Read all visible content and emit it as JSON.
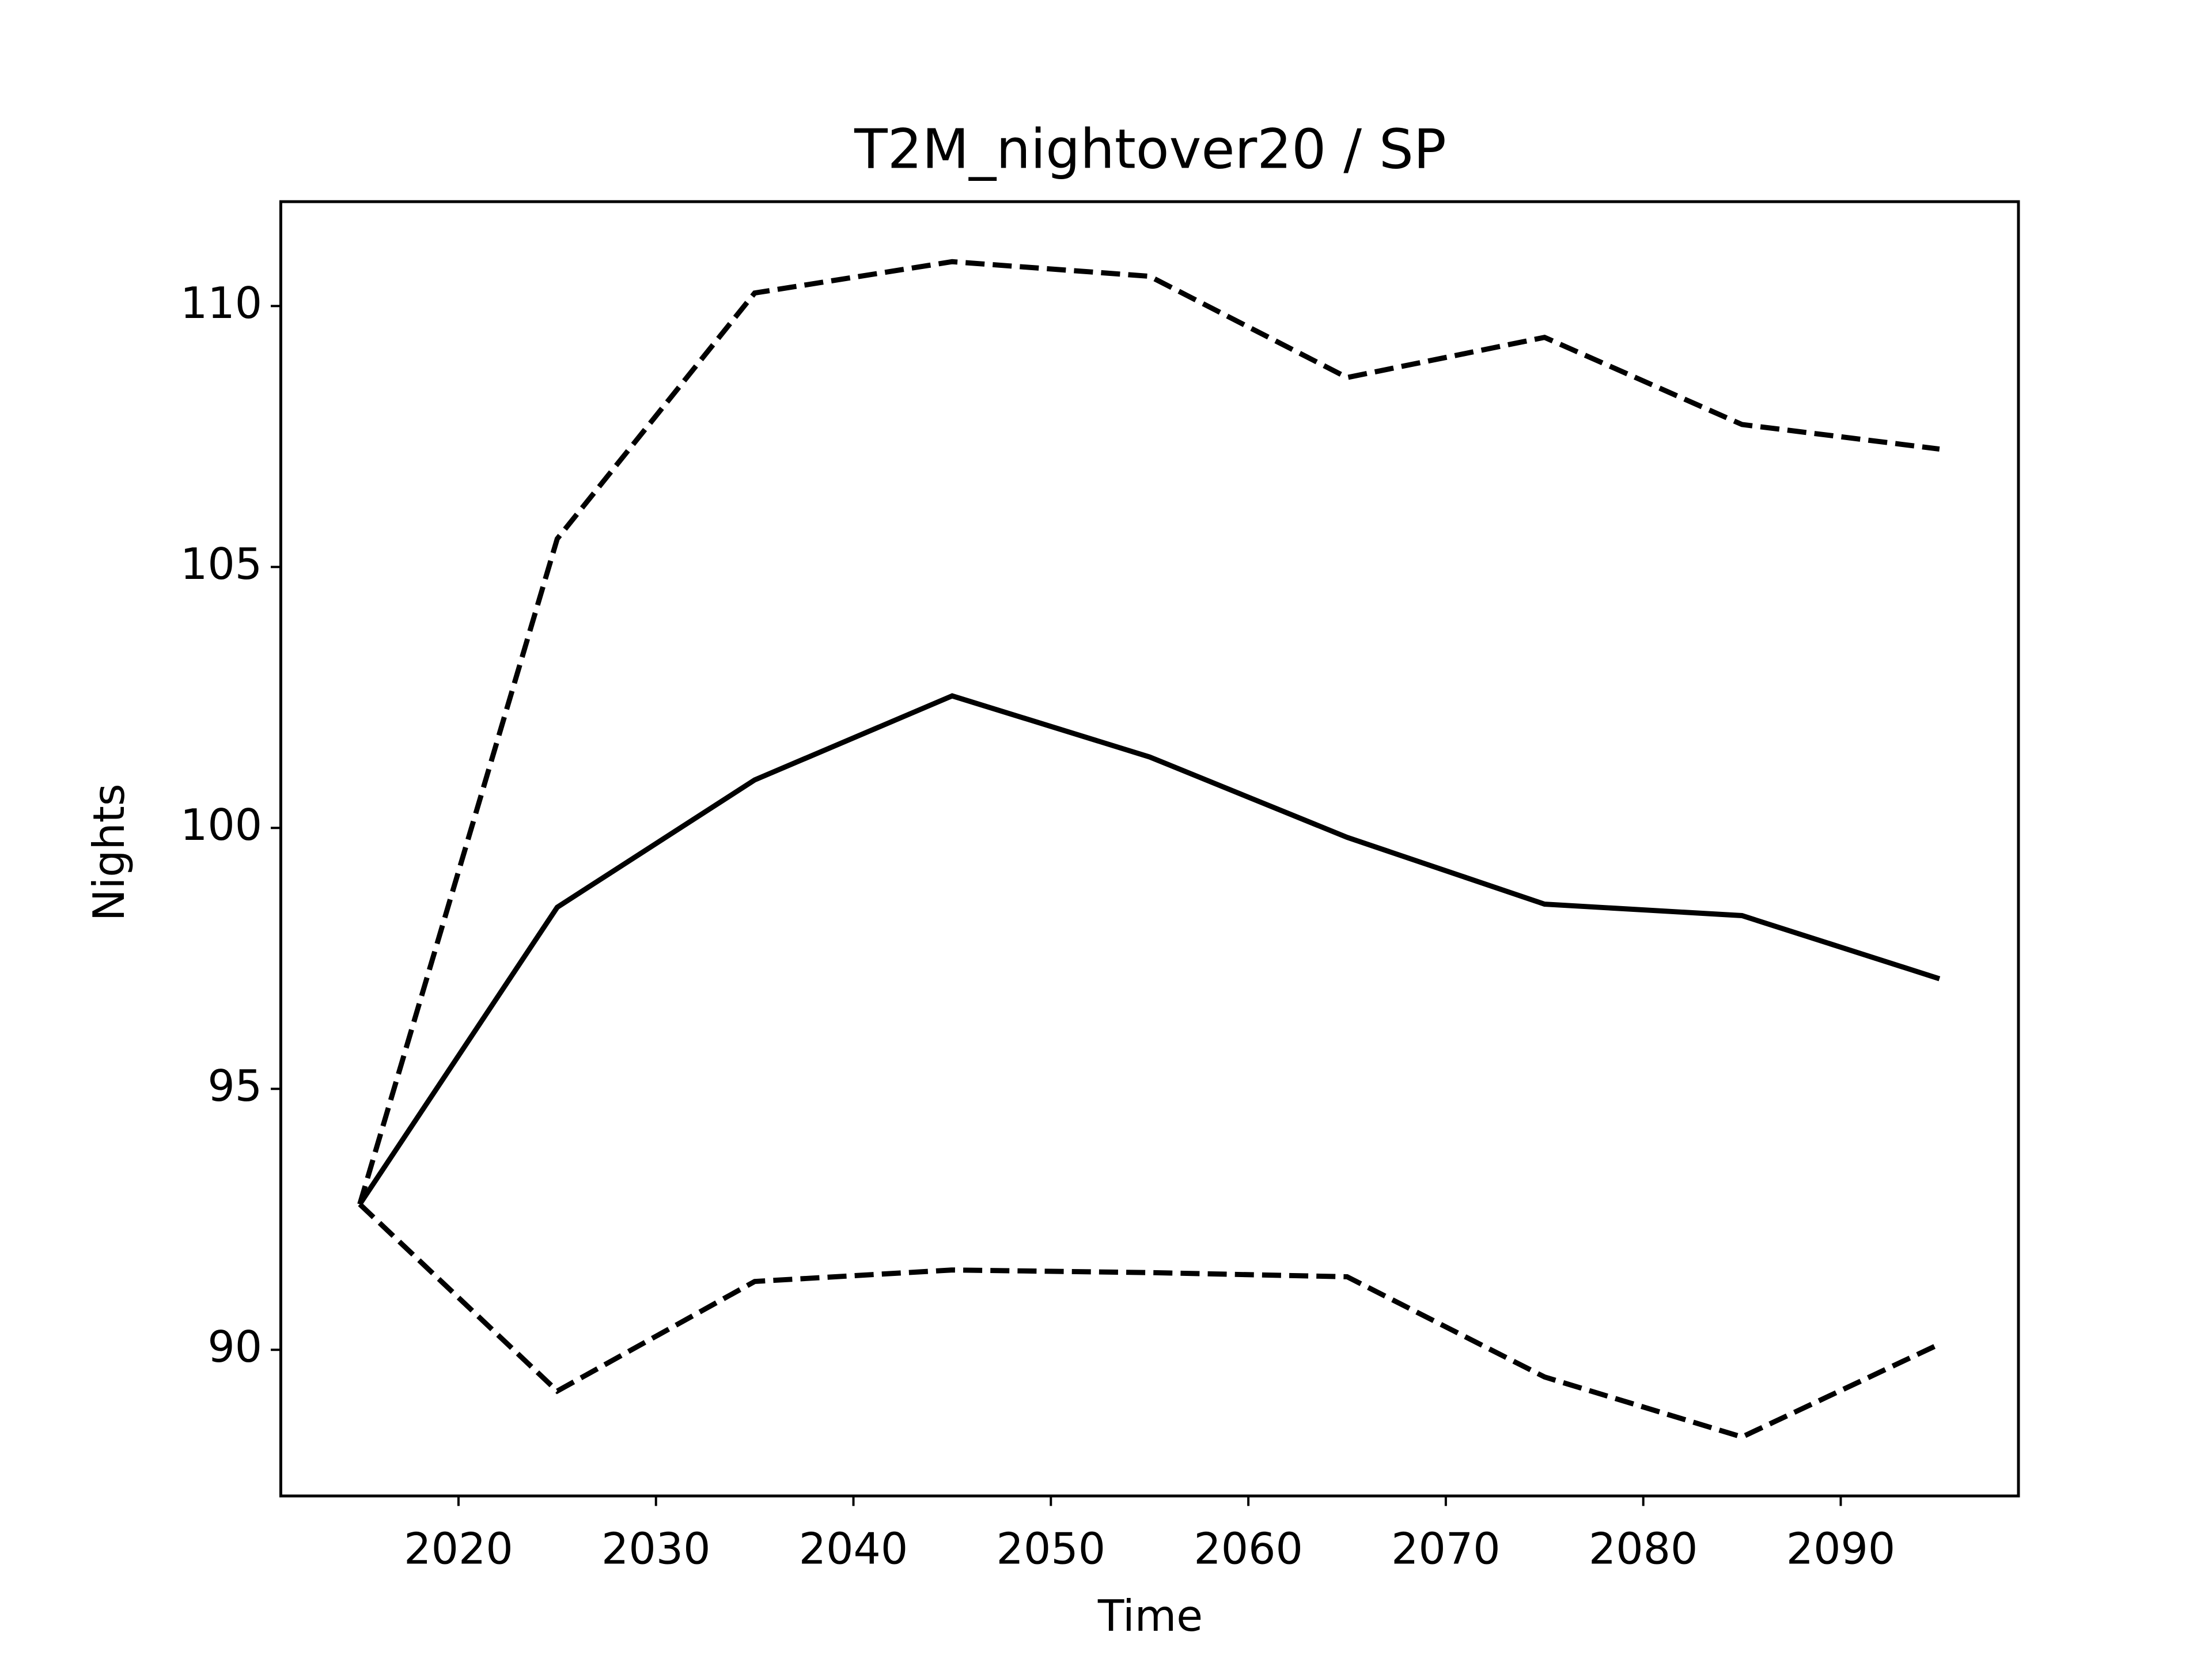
{
  "chart_data": {
    "type": "line",
    "title": "T2M_nightover20 / SP",
    "x_label": "Time",
    "y_label": "Nights",
    "x": [
      2015,
      2025,
      2035,
      2045,
      2055,
      2065,
      2075,
      2085,
      2095
    ],
    "series": [
      {
        "color": "#000000",
        "linestyle": "solid",
        "values": [
          92.79,
          98.48,
          100.92,
          102.53,
          101.36,
          99.82,
          98.54,
          98.32,
          97.11
        ]
      },
      {
        "color": "#000000",
        "linestyle": "dashed",
        "values": [
          92.79,
          105.54,
          110.25,
          110.85,
          110.57,
          108.63,
          109.4,
          107.73,
          107.26
        ]
      },
      {
        "color": "#000000",
        "linestyle": "dashed",
        "values": [
          92.79,
          89.21,
          91.31,
          91.53,
          91.48,
          91.4,
          89.48,
          88.33,
          90.11
        ]
      }
    ],
    "xlim": [
      2011,
      2099
    ],
    "xticks": [
      2020,
      2030,
      2040,
      2050,
      2060,
      2070,
      2080,
      2090
    ],
    "ylim": [
      87.2,
      112
    ],
    "yticks": [
      90,
      95,
      100,
      105,
      110
    ],
    "grid": false
  }
}
